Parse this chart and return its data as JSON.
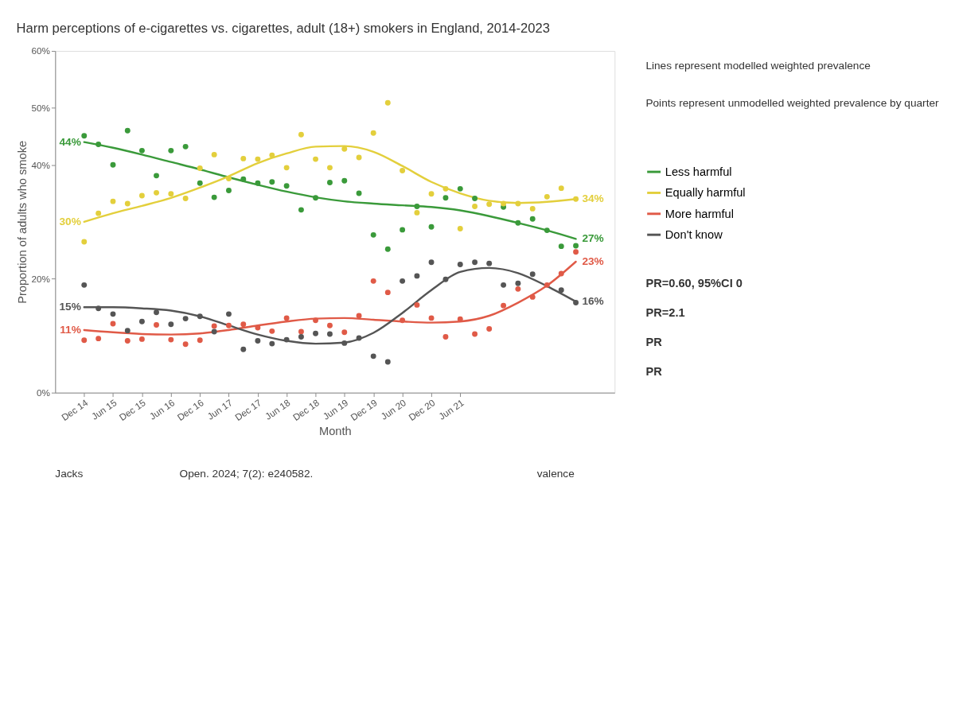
{
  "chart_data": {
    "type": "line",
    "title": "Harm perceptions of e-cigarettes vs. cigarettes, adult (18+) smokers in England, 2014-2023",
    "xlabel": "Month",
    "ylabel": "Proportion of adults who smoke",
    "x": [
      "2014-12",
      "2015-03",
      "2015-06",
      "2015-09",
      "2015-12",
      "2016-03",
      "2016-06",
      "2016-09",
      "2016-12",
      "2017-03",
      "2017-06",
      "2017-09",
      "2017-12",
      "2018-03",
      "2018-06",
      "2018-09",
      "2018-12",
      "2019-03",
      "2019-06",
      "2019-09",
      "2019-12",
      "2020-03",
      "2020-06",
      "2020-09",
      "2020-12",
      "2021-03",
      "2021-06",
      "2021-09",
      "2021-12",
      "2022-03",
      "2022-06",
      "2022-09",
      "2022-12",
      "2023-03",
      "2023-06"
    ],
    "series": [
      {
        "name": "Less harmful",
        "color": "#3a9a3a",
        "x": [
          "2014-12",
          "2015-06",
          "2015-12",
          "2016-06",
          "2016-12",
          "2017-06",
          "2017-12",
          "2018-06",
          "2018-12",
          "2019-06",
          "2019-12",
          "2020-06",
          "2020-12",
          "2021-06",
          "2021-12",
          "2022-06",
          "2022-12",
          "2023-06"
        ],
        "values": [
          44,
          43,
          41.8,
          40.5,
          39.2,
          37.8,
          36.5,
          35.3,
          34.3,
          33.6,
          33.2,
          32.9,
          32.6,
          32,
          31,
          29.8,
          28.5,
          27
        ],
        "value_labels": [
          "44%",
          null,
          null,
          null,
          null,
          null,
          null,
          null,
          null,
          null,
          null,
          null,
          null,
          null,
          null,
          null,
          null,
          "27%"
        ]
      },
      {
        "name": "Equally harmful",
        "color": "#e3cf3c",
        "x": [
          "2014-12",
          "2015-06",
          "2015-12",
          "2016-06",
          "2016-12",
          "2017-06",
          "2017-12",
          "2018-06",
          "2018-12",
          "2019-06",
          "2019-12",
          "2020-06",
          "2020-12",
          "2021-06",
          "2021-12",
          "2022-06",
          "2022-12",
          "2023-06"
        ],
        "values": [
          30,
          31.5,
          32.8,
          34.2,
          36,
          38,
          40.3,
          42,
          43.2,
          43.3,
          42.3,
          39.8,
          37,
          35,
          33.7,
          33.3,
          33.5,
          34
        ],
        "value_labels": [
          "30%",
          null,
          null,
          null,
          null,
          null,
          null,
          null,
          null,
          null,
          null,
          null,
          null,
          null,
          null,
          null,
          null,
          "34%"
        ]
      },
      {
        "name": "More harmful",
        "color": "#e05a47",
        "x": [
          "2014-12",
          "2015-06",
          "2015-12",
          "2016-06",
          "2016-12",
          "2017-06",
          "2017-12",
          "2018-06",
          "2018-12",
          "2019-06",
          "2019-12",
          "2020-06",
          "2020-12",
          "2021-06",
          "2021-12",
          "2022-06",
          "2022-12",
          "2023-06"
        ],
        "values": [
          11,
          10.6,
          10.3,
          10.2,
          10.4,
          11,
          11.8,
          12.5,
          13,
          13.1,
          12.8,
          12.5,
          12.3,
          12.5,
          13.5,
          15.8,
          18.8,
          23
        ],
        "value_labels": [
          "11%",
          null,
          null,
          null,
          null,
          null,
          null,
          null,
          null,
          null,
          null,
          null,
          null,
          null,
          null,
          null,
          null,
          "23%"
        ]
      },
      {
        "name": "Don't know",
        "color": "#555555",
        "x": [
          "2014-12",
          "2015-06",
          "2015-12",
          "2016-06",
          "2016-12",
          "2017-06",
          "2017-12",
          "2018-06",
          "2018-12",
          "2019-06",
          "2019-12",
          "2020-06",
          "2020-12",
          "2021-06",
          "2021-12",
          "2022-06",
          "2022-12",
          "2023-06"
        ],
        "values": [
          15,
          15,
          14.8,
          14.4,
          13.4,
          11.8,
          10.2,
          9.1,
          8.6,
          8.8,
          10.5,
          14,
          18,
          21.2,
          21.9,
          21,
          18.7,
          16
        ],
        "value_labels": [
          "15%",
          null,
          null,
          null,
          null,
          null,
          null,
          null,
          null,
          null,
          null,
          null,
          null,
          null,
          null,
          null,
          null,
          "16%"
        ]
      },
      {
        "type": "scatter",
        "marker": "circle",
        "color": "#3a9a3a",
        "values": [
          45.1,
          43.6,
          40.0,
          46.0,
          42.5,
          38.1,
          42.5,
          43.2,
          36.8,
          34.3,
          35.5,
          37.5,
          36.8,
          37.0,
          36.3,
          32.1,
          34.2,
          36.9,
          37.2,
          35.0,
          27.7,
          25.2,
          28.6,
          32.7,
          29.1,
          34.2,
          35.8,
          34.1,
          null,
          32.6,
          29.8,
          30.5,
          28.5,
          25.7,
          25.8
        ]
      },
      {
        "type": "scatter",
        "marker": "circle",
        "color": "#e3cf3c",
        "values": [
          26.5,
          31.5,
          33.6,
          33.2,
          34.6,
          35.1,
          34.9,
          34.1,
          39.4,
          41.8,
          37.6,
          41.1,
          41.0,
          41.7,
          39.5,
          45.3,
          41.0,
          39.5,
          42.8,
          41.3,
          45.6,
          50.9,
          39.0,
          31.6,
          34.9,
          35.8,
          28.8,
          32.7,
          33.1,
          33.2,
          33.2,
          32.3,
          34.4,
          35.9,
          34.0
        ]
      },
      {
        "type": "scatter",
        "marker": "circle",
        "color": "#e05a47",
        "values": [
          9.2,
          9.5,
          12.1,
          9.1,
          9.4,
          11.9,
          9.3,
          8.5,
          9.2,
          11.7,
          11.8,
          12.0,
          11.4,
          10.8,
          13.1,
          10.7,
          12.7,
          11.8,
          10.6,
          13.5,
          19.6,
          17.6,
          12.7,
          15.4,
          13.1,
          9.8,
          12.9,
          10.3,
          11.2,
          15.3,
          18.2,
          16.8,
          18.9,
          20.9,
          24.7
        ]
      },
      {
        "type": "scatter",
        "marker": "circle",
        "color": "#555555",
        "values": [
          18.9,
          14.8,
          13.8,
          10.9,
          12.5,
          14.1,
          12.0,
          13.0,
          13.4,
          10.7,
          13.8,
          7.6,
          9.1,
          8.6,
          9.3,
          9.8,
          10.4,
          10.3,
          8.7,
          9.6,
          6.4,
          5.4,
          19.6,
          20.5,
          22.9,
          19.9,
          22.5,
          22.9,
          22.7,
          18.9,
          19.2,
          20.8,
          null,
          18.0,
          15.8
        ]
      }
    ],
    "xlim": [
      "2014-06",
      "2024-02"
    ],
    "xticks": [
      {
        "value": "2014-12",
        "label": "Dec 14"
      },
      {
        "value": "2015-06",
        "label": "Jun 15"
      },
      {
        "value": "2015-12",
        "label": "Dec 15"
      },
      {
        "value": "2016-06",
        "label": "Jun 16"
      },
      {
        "value": "2016-12",
        "label": "Dec 16"
      },
      {
        "value": "2017-06",
        "label": "Jun 17"
      },
      {
        "value": "2017-12",
        "label": "Dec 17"
      },
      {
        "value": "2018-06",
        "label": "Jun 18"
      },
      {
        "value": "2018-12",
        "label": "Dec 18"
      },
      {
        "value": "2019-06",
        "label": "Jun 19"
      },
      {
        "value": "2019-12",
        "label": "Dec 19"
      },
      {
        "value": "2020-06",
        "label": "Jun 20"
      },
      {
        "value": "2020-12",
        "label": "Dec 20"
      },
      {
        "value": "2021-06",
        "label": "Jun 21"
      }
    ],
    "ylim": [
      0,
      60
    ],
    "yticks": [
      {
        "value": 0,
        "label": "0%"
      },
      {
        "value": 20,
        "label": "20%"
      },
      {
        "value": 40,
        "label": "40%"
      },
      {
        "value": 50,
        "label": "50%"
      },
      {
        "value": 60,
        "label": "60%"
      }
    ],
    "grid": false,
    "legend": "right",
    "line_style": "solid",
    "annotations": [
      "Lines represent modelled weighted prevalence",
      "Points represent unmodelled weighted prevalence by quarter",
      "PR=0.60, 95%CI 0",
      "PR=2.1",
      "PR",
      "PR",
      "Jacks",
      "Open. 2024; 7(2): e240582.",
      "valence"
    ]
  }
}
